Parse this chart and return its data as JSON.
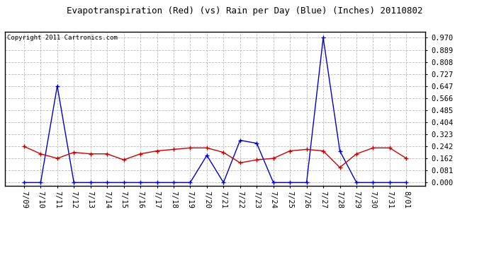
{
  "title": "Evapotranspiration (Red) (vs) Rain per Day (Blue) (Inches) 20110802",
  "copyright": "Copyright 2011 Cartronics.com",
  "labels": [
    "7/09",
    "7/10",
    "7/11",
    "7/12",
    "7/13",
    "7/14",
    "7/15",
    "7/16",
    "7/17",
    "7/18",
    "7/19",
    "7/20",
    "7/21",
    "7/22",
    "7/23",
    "7/24",
    "7/25",
    "7/26",
    "7/27",
    "7/28",
    "7/29",
    "7/30",
    "7/31",
    "8/01"
  ],
  "red_data": [
    0.242,
    0.192,
    0.162,
    0.202,
    0.192,
    0.192,
    0.152,
    0.192,
    0.212,
    0.222,
    0.232,
    0.232,
    0.202,
    0.132,
    0.152,
    0.162,
    0.212,
    0.222,
    0.212,
    0.101,
    0.192,
    0.232,
    0.232,
    0.162
  ],
  "blue_data": [
    0.0,
    0.0,
    0.647,
    0.0,
    0.0,
    0.0,
    0.0,
    0.0,
    0.0,
    0.0,
    0.0,
    0.182,
    0.0,
    0.283,
    0.263,
    0.0,
    0.0,
    0.0,
    0.97,
    0.212,
    0.0,
    0.0,
    0.0,
    0.0
  ],
  "yticks": [
    0.0,
    0.081,
    0.162,
    0.242,
    0.323,
    0.404,
    0.485,
    0.566,
    0.647,
    0.727,
    0.808,
    0.889,
    0.97
  ],
  "ymax": 1.01,
  "ymin": -0.02,
  "bg_color": "#FFFFFF",
  "plot_bg_color": "#FFFFFF",
  "grid_color": "#BBBBBB",
  "red_color": "#CC0000",
  "blue_color": "#0000CC",
  "title_fontsize": 9,
  "copyright_fontsize": 6.5,
  "tick_fontsize": 7.5
}
